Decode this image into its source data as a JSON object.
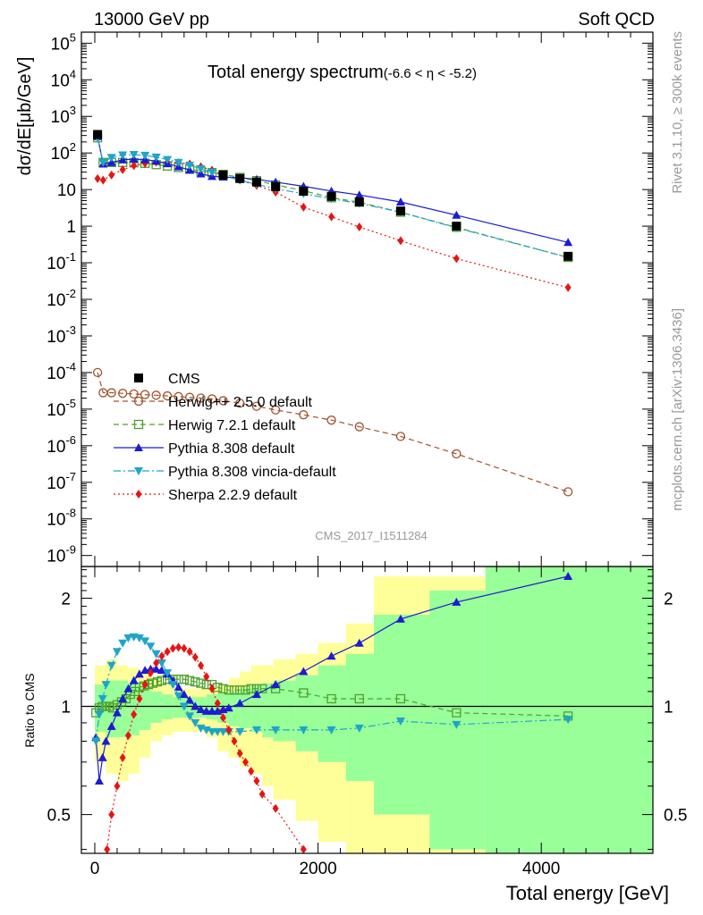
{
  "header": {
    "beam": "13000 GeV pp",
    "process": "Soft QCD",
    "title_main": "Total energy spectrum",
    "title_range": "(-6.6 < η < -5.2)",
    "analysis_id": "CMS_2017_I1511284",
    "side_right_top": "Rivet 3.1.10, ≥ 300k events",
    "side_right_bottom": "mcplots.cern.ch [arXiv:1306.3436]"
  },
  "axes": {
    "ylabel_main": "dσ/dE[μb/GeV]",
    "ylabel_ratio": "Ratio to CMS",
    "xlabel": "Total energy [GeV]",
    "x_ticks": [
      "0",
      "2000",
      "4000"
    ],
    "y_ticks_main": [
      {
        "base": "10",
        "exp": "5"
      },
      {
        "base": "10",
        "exp": "4"
      },
      {
        "base": "10",
        "exp": "3"
      },
      {
        "base": "10",
        "exp": "2"
      },
      {
        "base": "10",
        "exp": ""
      },
      {
        "base": "1",
        "exp": ""
      },
      {
        "base": "10",
        "exp": "-1"
      },
      {
        "base": "10",
        "exp": "-2"
      },
      {
        "base": "10",
        "exp": "-3"
      },
      {
        "base": "10",
        "exp": "-4"
      },
      {
        "base": "10",
        "exp": "-5"
      },
      {
        "base": "10",
        "exp": "-6"
      },
      {
        "base": "10",
        "exp": "-7"
      },
      {
        "base": "10",
        "exp": "-8"
      },
      {
        "base": "10",
        "exp": "-9"
      }
    ],
    "y_ticks_ratio": [
      "2",
      "1",
      "0.5"
    ]
  },
  "legend": [
    {
      "label": "CMS",
      "color": "#000000",
      "marker": "square-filled",
      "line": "none"
    },
    {
      "label": "Herwig++ 2.5.0 default",
      "color": "#a0522d",
      "marker": "circle-open",
      "line": "dashed"
    },
    {
      "label": "Herwig 7.2.1 default",
      "color": "#4ea12e",
      "marker": "square-open",
      "line": "dashed"
    },
    {
      "label": "Pythia 8.308 default",
      "color": "#1c1cd0",
      "marker": "triangle-up",
      "line": "solid"
    },
    {
      "label": "Pythia 8.308 vincia-default",
      "color": "#1ea5c8",
      "marker": "triangle-down",
      "line": "dashdot"
    },
    {
      "label": "Sherpa 2.2.9 default",
      "color": "#e81414",
      "marker": "diamond",
      "line": "dotted"
    }
  ],
  "chart_data": [
    {
      "type": "line",
      "panel": "main",
      "title": "Total energy spectrum (-6.6 < η < -5.2)",
      "xlabel": "Total energy [GeV]",
      "ylabel": "dσ/dE[μb/GeV]",
      "yscale": "log",
      "xlim": [
        -120,
        5000
      ],
      "ylim": [
        5e-10,
        200000.0
      ],
      "series": [
        {
          "name": "CMS",
          "x": [
            25,
            1150,
            1300,
            1450,
            1620,
            1870,
            2120,
            2370,
            2740,
            3240,
            4240
          ],
          "y": [
            320,
            25,
            20,
            16,
            12,
            9,
            6.5,
            4.6,
            2.6,
            1.0,
            0.15
          ]
        },
        {
          "name": "Herwig++ 2.5.0 default",
          "x": [
            25,
            75,
            150,
            250,
            350,
            450,
            550,
            650,
            750,
            850,
            950,
            1050,
            1150,
            1300,
            1450,
            1620,
            1870,
            2120,
            2370,
            2740,
            3240,
            4240
          ],
          "y": [
            0.0001,
            2.8e-05,
            2.8e-05,
            2.7e-05,
            2.6e-05,
            2.5e-05,
            2.4e-05,
            2.3e-05,
            2.2e-05,
            2.1e-05,
            2e-05,
            1.9e-05,
            1.7e-05,
            1.45e-05,
            1.2e-05,
            9.5e-06,
            7e-06,
            5e-06,
            3.3e-06,
            1.8e-06,
            6e-07,
            5.5e-08
          ]
        },
        {
          "name": "Herwig 7.2.1 default",
          "x": [
            25,
            75,
            150,
            250,
            350,
            450,
            550,
            650,
            750,
            850,
            950,
            1050,
            1150,
            1300,
            1450,
            1620,
            1870,
            2120,
            2370,
            2740,
            3240,
            4240
          ],
          "y": [
            260,
            55,
            55,
            55,
            54,
            52,
            48,
            44,
            40,
            36,
            32,
            29,
            26,
            21.5,
            17.5,
            13.4,
            9.3,
            6.0,
            4.5,
            2.4,
            0.93,
            0.14
          ]
        },
        {
          "name": "Pythia 8.308 default",
          "x": [
            25,
            75,
            150,
            250,
            350,
            450,
            550,
            650,
            750,
            850,
            950,
            1050,
            1150,
            1300,
            1450,
            1620,
            1870,
            2120,
            2370,
            2740,
            3240,
            4240
          ],
          "y": [
            280,
            50,
            55,
            65,
            68,
            66,
            60,
            51,
            42,
            34,
            27,
            23,
            22,
            21,
            19,
            16,
            12.3,
            9.1,
            7.1,
            4.6,
            2.0,
            0.36
          ]
        },
        {
          "name": "Pythia 8.308 vincia-default",
          "x": [
            25,
            75,
            150,
            250,
            350,
            450,
            550,
            650,
            750,
            850,
            950,
            1050,
            1150,
            1300,
            1450,
            1620,
            1870,
            2120,
            2370,
            2740,
            3240,
            4240
          ],
          "y": [
            260,
            55,
            75,
            88,
            90,
            86,
            77,
            66,
            55,
            46,
            37,
            30,
            24,
            18,
            14,
            10.5,
            7.7,
            5.6,
            4.2,
            2.4,
            0.9,
            0.14
          ]
        },
        {
          "name": "Sherpa 2.2.9 default",
          "x": [
            25,
            75,
            150,
            250,
            350,
            450,
            550,
            650,
            750,
            850,
            950,
            1050,
            1150,
            1300,
            1450,
            1620,
            1870,
            2120,
            2370,
            2740,
            3240,
            4240
          ],
          "y": [
            20,
            18,
            25,
            35,
            45,
            52,
            56,
            56,
            54,
            50,
            42,
            34,
            25,
            18,
            13,
            8.5,
            3.3,
            1.8,
            0.95,
            0.4,
            0.13,
            0.021
          ]
        }
      ]
    },
    {
      "type": "line",
      "panel": "ratio",
      "xlabel": "Total energy [GeV]",
      "ylabel": "Ratio to CMS",
      "yscale": "log",
      "xlim": [
        -120,
        5000
      ],
      "ylim": [
        0.39,
        2.45
      ],
      "bands": {
        "edges": [
          0,
          100,
          200,
          300,
          400,
          500,
          600,
          700,
          800,
          900,
          1000,
          1100,
          1200,
          1300,
          1400,
          1500,
          1600,
          1800,
          2000,
          2250,
          2500,
          3000,
          3500,
          5000
        ],
        "yellow_lo": [
          0.7,
          0.65,
          0.62,
          0.65,
          0.72,
          0.8,
          0.83,
          0.85,
          0.85,
          0.85,
          0.82,
          0.75,
          0.72,
          0.68,
          0.65,
          0.6,
          0.55,
          0.48,
          0.42,
          0.38,
          0.3,
          0.2,
          0.2
        ],
        "yellow_hi": [
          1.3,
          1.35,
          1.3,
          1.28,
          1.25,
          1.2,
          1.15,
          1.12,
          1.12,
          1.12,
          1.12,
          1.15,
          1.2,
          1.25,
          1.3,
          1.3,
          1.35,
          1.4,
          1.5,
          1.7,
          2.3,
          2.3,
          3.0
        ],
        "green_lo": [
          0.85,
          0.82,
          0.82,
          0.83,
          0.86,
          0.9,
          0.92,
          0.93,
          0.93,
          0.93,
          0.92,
          0.9,
          0.88,
          0.87,
          0.85,
          0.82,
          0.8,
          0.75,
          0.7,
          0.62,
          0.5,
          0.4,
          0.3
        ],
        "green_hi": [
          1.15,
          1.18,
          1.18,
          1.16,
          1.14,
          1.1,
          1.08,
          1.06,
          1.06,
          1.06,
          1.08,
          1.09,
          1.1,
          1.12,
          1.15,
          1.16,
          1.18,
          1.22,
          1.3,
          1.4,
          1.8,
          2.1,
          3.0
        ]
      },
      "series": [
        {
          "name": "Herwig 7.2.1 default",
          "x": [
            10,
            40,
            70,
            100,
            130,
            160,
            200,
            240,
            280,
            320,
            360,
            400,
            440,
            480,
            520,
            560,
            600,
            650,
            700,
            750,
            800,
            850,
            900,
            950,
            1000,
            1050,
            1100,
            1150,
            1200,
            1250,
            1300,
            1350,
            1400,
            1450,
            1500,
            1620,
            1870,
            2120,
            2370,
            2740,
            3240,
            4240
          ],
          "y": [
            0.96,
            0.99,
            1.0,
            1.0,
            1.0,
            0.99,
            1.01,
            1.03,
            1.05,
            1.08,
            1.1,
            1.13,
            1.14,
            1.15,
            1.16,
            1.17,
            1.18,
            1.19,
            1.19,
            1.19,
            1.19,
            1.18,
            1.17,
            1.16,
            1.15,
            1.15,
            1.13,
            1.12,
            1.11,
            1.11,
            1.11,
            1.11,
            1.12,
            1.12,
            1.12,
            1.12,
            1.09,
            1.05,
            1.05,
            1.05,
            0.96,
            0.94
          ]
        },
        {
          "name": "Pythia 8.308 default",
          "x": [
            10,
            40,
            70,
            100,
            150,
            200,
            250,
            300,
            350,
            400,
            450,
            500,
            550,
            600,
            650,
            700,
            750,
            800,
            850,
            900,
            950,
            1000,
            1050,
            1100,
            1150,
            1200,
            1300,
            1450,
            1620,
            1870,
            2120,
            2370,
            2740,
            3240,
            4240
          ],
          "y": [
            0.82,
            0.62,
            0.72,
            0.8,
            0.88,
            0.96,
            1.05,
            1.12,
            1.18,
            1.23,
            1.26,
            1.27,
            1.27,
            1.26,
            1.23,
            1.18,
            1.13,
            1.08,
            1.04,
            1.0,
            0.98,
            0.97,
            0.97,
            0.97,
            0.98,
            0.99,
            1.02,
            1.08,
            1.15,
            1.25,
            1.38,
            1.5,
            1.75,
            1.95,
            2.3
          ]
        },
        {
          "name": "Pythia 8.308 vincia-default",
          "x": [
            10,
            40,
            70,
            100,
            150,
            200,
            250,
            300,
            350,
            400,
            450,
            500,
            550,
            600,
            650,
            700,
            750,
            800,
            850,
            900,
            950,
            1000,
            1050,
            1100,
            1150,
            1200,
            1300,
            1450,
            1620,
            1870,
            2120,
            2370,
            2740,
            3240,
            4240
          ],
          "y": [
            0.8,
            0.95,
            1.05,
            1.15,
            1.3,
            1.42,
            1.5,
            1.55,
            1.56,
            1.55,
            1.52,
            1.47,
            1.4,
            1.32,
            1.24,
            1.15,
            1.07,
            1.0,
            0.94,
            0.9,
            0.87,
            0.86,
            0.85,
            0.85,
            0.85,
            0.85,
            0.85,
            0.86,
            0.86,
            0.86,
            0.86,
            0.87,
            0.91,
            0.89,
            0.92
          ]
        },
        {
          "name": "Sherpa 2.2.9 default",
          "x": [
            110,
            150,
            200,
            250,
            300,
            350,
            400,
            450,
            500,
            550,
            600,
            650,
            700,
            750,
            800,
            850,
            900,
            950,
            1000,
            1050,
            1100,
            1150,
            1200,
            1250,
            1300,
            1350,
            1400,
            1450,
            1500,
            1620,
            1870
          ],
          "y": [
            0.4,
            0.5,
            0.6,
            0.72,
            0.83,
            0.95,
            1.05,
            1.15,
            1.24,
            1.32,
            1.38,
            1.42,
            1.45,
            1.46,
            1.45,
            1.42,
            1.37,
            1.3,
            1.21,
            1.12,
            1.02,
            0.93,
            0.86,
            0.8,
            0.74,
            0.7,
            0.66,
            0.62,
            0.57,
            0.52,
            0.4
          ]
        }
      ]
    }
  ]
}
